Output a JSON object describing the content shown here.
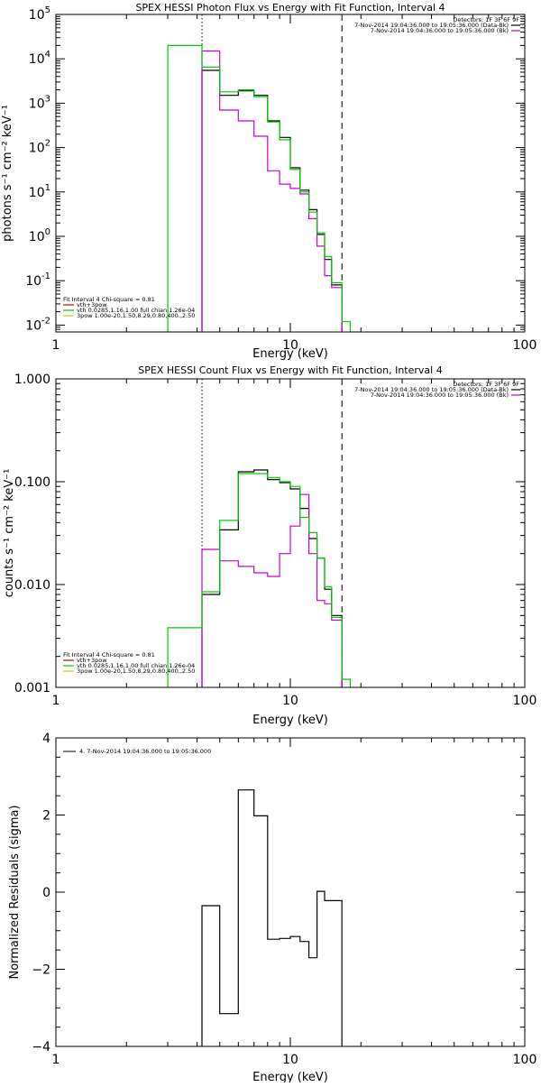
{
  "chart_data": [
    {
      "type": "line",
      "id": "photon",
      "title": "SPEX HESSI Photon Flux vs Energy with Fit Function, Interval 4",
      "xlabel": "Energy (keV)",
      "ylabel": "photons s⁻¹ cm⁻² keV⁻¹",
      "xscale": "log",
      "yscale": "log",
      "xlim": [
        1,
        100
      ],
      "ylim": [
        0.007,
        100000
      ],
      "xticks": [
        {
          "v": 1,
          "label": "1"
        },
        {
          "v": 10,
          "label": "10"
        },
        {
          "v": 100,
          "label": "100"
        }
      ],
      "yticks": [
        {
          "v": 0.01,
          "base": "10",
          "exp": "-2"
        },
        {
          "v": 0.1,
          "base": "10",
          "exp": "-1"
        },
        {
          "v": 1,
          "base": "10",
          "exp": "0"
        },
        {
          "v": 10,
          "base": "10",
          "exp": "1"
        },
        {
          "v": 100,
          "base": "10",
          "exp": "2"
        },
        {
          "v": 1000,
          "base": "10",
          "exp": "3"
        },
        {
          "v": 10000,
          "base": "10",
          "exp": "4"
        },
        {
          "v": 100000,
          "base": "10",
          "exp": "5"
        }
      ],
      "vlines": [
        {
          "x": 4.2,
          "style": "dotted"
        },
        {
          "x": 16.6,
          "style": "dashed"
        }
      ],
      "legend_top": [
        "Detectors: 1F 3F 6F 9F",
        "7-Nov-2014 19:04:36.000 to 19:05:36.000 (Data-Bk)",
        "7-Nov-2014 19:04:36.000 to 19:05:36.000 (Bk)"
      ],
      "legend_bottom": [
        "Fit Interval 4   Chi-square = 0.81",
        "vth+3pow",
        "vth 0.0285,1.16,1.00  full chian 1.26e-04",
        "3pow 1.00e-20,1.50,8.29,0.80,400.,2.50"
      ],
      "series": [
        {
          "name": "7-Nov-2014 19:04:36.000 to 19:05:36.000 (Data-Bk)",
          "color": "#000000",
          "edges": [
            4.2,
            5.0,
            6.0,
            7.0,
            8.0,
            9.0,
            10.0,
            11.0,
            12.0,
            13.0,
            14.0,
            15.0,
            16.6
          ],
          "values": [
            5500,
            1500,
            1900,
            1500,
            400,
            170,
            35,
            11,
            4,
            1.1,
            0.3,
            0.08
          ]
        },
        {
          "name": "7-Nov-2014 19:04:36.000 to 19:05:36.000 (Bk)",
          "color": "#cc00cc",
          "edges": [
            4.2,
            5.0,
            6.0,
            7.0,
            8.0,
            9.0,
            10.0,
            11.0,
            12.0,
            13.0,
            14.0,
            15.0,
            16.6
          ],
          "values": [
            15000,
            700,
            400,
            180,
            30,
            15,
            12,
            9,
            2.5,
            0.6,
            0.13,
            0.07
          ]
        },
        {
          "name": "vth 0.0285,1.16,1.00  full chian 1.26e-04",
          "color": "#00cc00",
          "edges": [
            3.0,
            4.2,
            5.0,
            6.0,
            7.0,
            8.0,
            9.0,
            10.0,
            11.0,
            12.0,
            13.0,
            14.0,
            15.0,
            16.6,
            18.0
          ],
          "values": [
            20000,
            6500,
            1800,
            2000,
            1400,
            380,
            150,
            32,
            10,
            3.5,
            1.2,
            0.35,
            0.09,
            0.012
          ]
        },
        {
          "name": "3pow 1.00e-20,1.50,8.29,0.80,400.,2.50",
          "color": "#cccc00",
          "edges": [],
          "values": []
        }
      ]
    },
    {
      "type": "line",
      "id": "count",
      "title": "SPEX HESSI Count Flux vs Energy with Fit Function, Interval 4",
      "xlabel": "Energy (keV)",
      "ylabel": "counts s⁻¹ cm⁻² keV⁻¹",
      "xscale": "log",
      "yscale": "log",
      "xlim": [
        1,
        100
      ],
      "ylim": [
        0.001,
        1.0
      ],
      "xticks": [
        {
          "v": 1,
          "label": "1"
        },
        {
          "v": 10,
          "label": "10"
        },
        {
          "v": 100,
          "label": "100"
        }
      ],
      "yticks": [
        {
          "v": 0.001,
          "label": "0.001"
        },
        {
          "v": 0.01,
          "label": "0.010"
        },
        {
          "v": 0.1,
          "label": "0.100"
        },
        {
          "v": 1.0,
          "label": "1.000"
        }
      ],
      "vlines": [
        {
          "x": 4.2,
          "style": "dotted"
        },
        {
          "x": 16.6,
          "style": "dashed"
        }
      ],
      "legend_top": [
        "Detectors: 1F 3F 6F 9F",
        "7-Nov-2014 19:04:36.000 to 19:05:36.000 (Data-Bk)",
        "7-Nov-2014 19:04:36.000 to 19:05:36.000 (Bk)"
      ],
      "legend_bottom": [
        "Fit Interval 4   Chi-square = 0.81",
        "vth+3pow",
        "vth 0.0285,1.16,1.00  full chian 1.26e-04",
        "3pow 1.00e-20,1.50,8.29,0.80,400.,2.50"
      ],
      "series": [
        {
          "name": "7-Nov-2014 19:04:36.000 to 19:05:36.000 (Data-Bk)",
          "color": "#000000",
          "edges": [
            4.2,
            5.0,
            6.0,
            7.0,
            8.0,
            9.0,
            10.0,
            11.0,
            12.0,
            13.0,
            14.0,
            15.0,
            16.6
          ],
          "values": [
            0.008,
            0.034,
            0.125,
            0.13,
            0.105,
            0.098,
            0.085,
            0.055,
            0.028,
            0.018,
            0.009,
            0.005
          ]
        },
        {
          "name": "7-Nov-2014 19:04:36.000 to 19:05:36.000 (Bk)",
          "color": "#cc00cc",
          "edges": [
            4.2,
            5.0,
            6.0,
            7.0,
            8.0,
            9.0,
            10.0,
            11.0,
            12.0,
            13.0,
            14.0,
            15.0,
            16.6
          ],
          "values": [
            0.022,
            0.017,
            0.015,
            0.013,
            0.012,
            0.02,
            0.037,
            0.075,
            0.02,
            0.007,
            0.0065,
            0.0045
          ]
        },
        {
          "name": "vth 0.0285,1.16,1.00  full chian 1.26e-04",
          "color": "#00cc00",
          "edges": [
            3.0,
            4.2,
            5.0,
            6.0,
            7.0,
            8.0,
            9.0,
            10.0,
            11.0,
            12.0,
            13.0,
            14.0,
            15.0,
            16.6,
            18.0
          ],
          "values": [
            0.0038,
            0.0085,
            0.042,
            0.12,
            0.12,
            0.11,
            0.1,
            0.09,
            0.045,
            0.032,
            0.018,
            0.0095,
            0.0048,
            0.0012
          ]
        },
        {
          "name": "3pow 1.00e-20,1.50,8.29,0.80,400.,2.50",
          "color": "#cccc00",
          "edges": [],
          "values": []
        }
      ]
    },
    {
      "type": "line",
      "id": "resid",
      "title": "",
      "xlabel": "Energy (keV)",
      "ylabel": "Normalized Residuals (sigma)",
      "xscale": "log",
      "yscale": "linear",
      "xlim": [
        1,
        100
      ],
      "ylim": [
        -4,
        4
      ],
      "xticks": [
        {
          "v": 1,
          "label": "1"
        },
        {
          "v": 10,
          "label": "10"
        },
        {
          "v": 100,
          "label": "100"
        }
      ],
      "yticks": [
        {
          "v": -4,
          "label": "−4"
        },
        {
          "v": -2,
          "label": "−2"
        },
        {
          "v": 0,
          "label": "0"
        },
        {
          "v": 2,
          "label": "2"
        },
        {
          "v": 4,
          "label": "4"
        }
      ],
      "vlines": [],
      "legend_top": [
        "4.  7-Nov-2014 19:04:36.000 to 19:05:36.000"
      ],
      "legend_bottom": [],
      "series": [
        {
          "name": "4.  7-Nov-2014 19:04:36.000 to 19:05:36.000",
          "color": "#000000",
          "edges": [
            4.2,
            5.0,
            6.0,
            7.0,
            8.0,
            9.0,
            10.0,
            11.0,
            12.0,
            13.0,
            14.0,
            15.0,
            16.6
          ],
          "values": [
            -0.35,
            -3.15,
            2.65,
            1.98,
            -1.22,
            -1.2,
            -1.15,
            -1.28,
            -1.7,
            0.02,
            -0.22,
            -0.22
          ]
        }
      ]
    }
  ]
}
